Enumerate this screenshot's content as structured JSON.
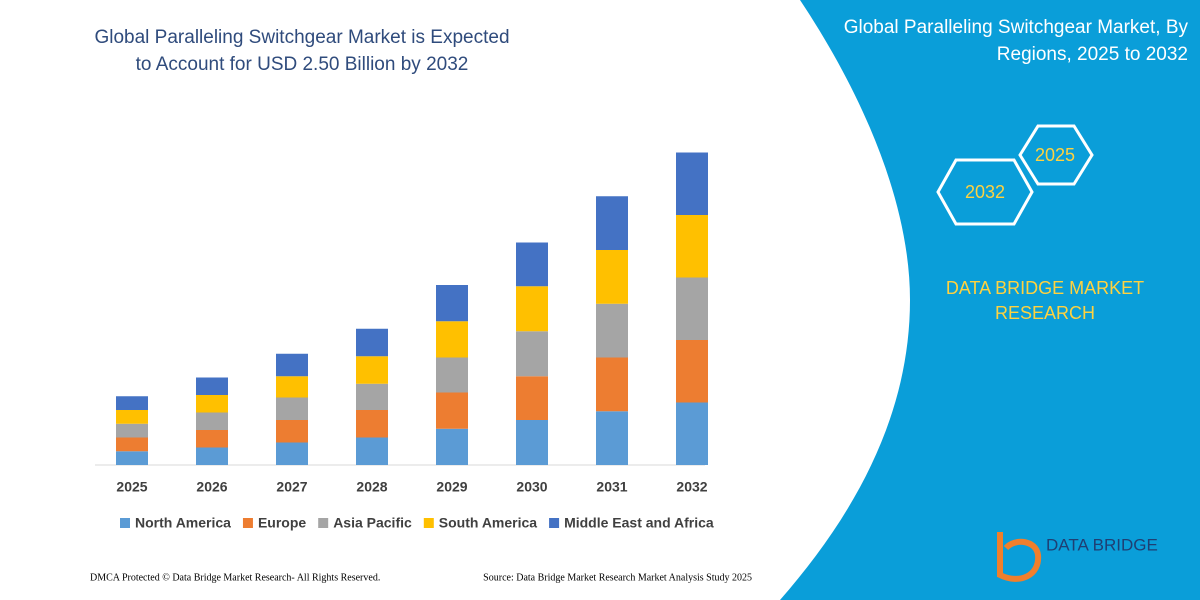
{
  "chart_data": {
    "type": "stacked-bar",
    "title": "Global Paralleling Switchgear Market is Expected to Account for USD 2.50 Billion by 2032",
    "categories": [
      "2025",
      "2026",
      "2027",
      "2028",
      "2029",
      "2030",
      "2031",
      "2032"
    ],
    "series": [
      {
        "name": "North America",
        "color": "#5b9bd5",
        "values": [
          0.11,
          0.14,
          0.18,
          0.22,
          0.29,
          0.36,
          0.43,
          0.5
        ]
      },
      {
        "name": "Europe",
        "color": "#ed7d31",
        "values": [
          0.11,
          0.14,
          0.18,
          0.22,
          0.29,
          0.35,
          0.43,
          0.5
        ]
      },
      {
        "name": "Asia Pacific",
        "color": "#a5a5a5",
        "values": [
          0.11,
          0.14,
          0.18,
          0.21,
          0.28,
          0.36,
          0.43,
          0.5
        ]
      },
      {
        "name": "South America",
        "color": "#ffc000",
        "values": [
          0.11,
          0.14,
          0.17,
          0.22,
          0.29,
          0.36,
          0.43,
          0.5
        ]
      },
      {
        "name": "Middle East and Africa",
        "color": "#4472c4",
        "values": [
          0.11,
          0.14,
          0.18,
          0.22,
          0.29,
          0.35,
          0.43,
          0.5
        ]
      }
    ],
    "ylim": [
      0,
      2.8
    ]
  },
  "panel": {
    "title": "Global Paralleling Switchgear Market, By Regions, 2025 to 2032",
    "hex_top": "2025",
    "hex_bottom": "2032",
    "brand": "DATA BRIDGE MARKET RESEARCH"
  },
  "footer": {
    "left": "DMCA Protected © Data Bridge Market Research-  All Rights Reserved.",
    "right": "Source: Data Bridge Market Research  Market Analysis Study 2025"
  },
  "logo": {
    "name": "DATA BRIDGE"
  }
}
